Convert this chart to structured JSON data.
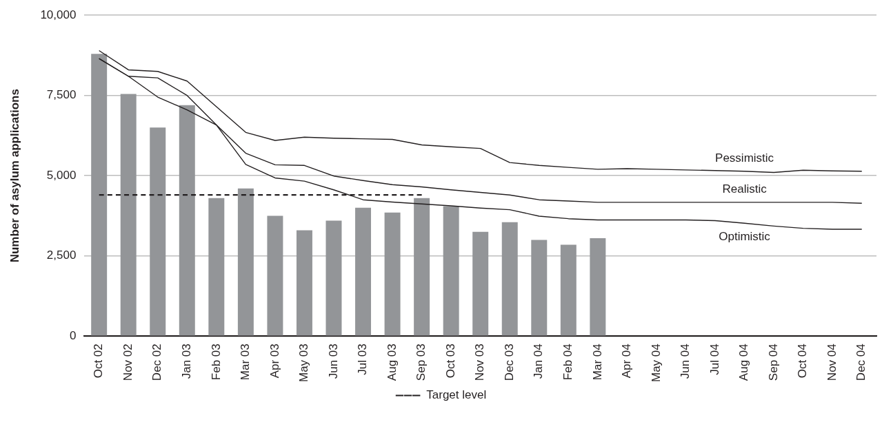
{
  "chart_data": {
    "type": "bar",
    "ylabel": "Number of asylum applications",
    "categories": [
      "Oct 02",
      "Nov 02",
      "Dec 02",
      "Jan 03",
      "Feb 03",
      "Mar 03",
      "Apr 03",
      "May 03",
      "Jun 03",
      "Jul 03",
      "Aug 03",
      "Sep 03",
      "Oct 03",
      "Nov 03",
      "Dec 03",
      "Jan 04",
      "Feb 04",
      "Mar 04",
      "Apr 04",
      "May 04",
      "Jun 04",
      "Jul 04",
      "Aug 04",
      "Sep 04",
      "Oct 04",
      "Nov 04",
      "Dec 04"
    ],
    "series": [
      {
        "color": "#939598",
        "values": [
          8800,
          7550,
          6500,
          7200,
          4300,
          4600,
          3750,
          3300,
          3600,
          4000,
          3850,
          4300,
          4050,
          3250,
          3550,
          3000,
          2850,
          3050,
          null,
          null,
          null,
          null,
          null,
          null,
          null,
          null,
          null
        ]
      },
      {
        "type": "line",
        "name": "Pessimistic",
        "color": "#231f20",
        "values": [
          8900,
          8300,
          8250,
          7950,
          7150,
          6350,
          6100,
          6200,
          6170,
          6150,
          6130,
          5960,
          5900,
          5850,
          5410,
          5320,
          5260,
          5200,
          5220,
          5200,
          5180,
          5160,
          5140,
          5100,
          5170,
          5150,
          5140
        ]
      },
      {
        "type": "line",
        "name": "Realistic",
        "color": "#231f20",
        "values": [
          8650,
          8100,
          8050,
          7500,
          6580,
          5700,
          5340,
          5320,
          4990,
          4850,
          4720,
          4650,
          4560,
          4480,
          4400,
          4250,
          4210,
          4170,
          4170,
          4170,
          4170,
          4170,
          4170,
          4170,
          4170,
          4170,
          4140
        ]
      },
      {
        "type": "line",
        "name": "Optimistic",
        "color": "#231f20",
        "values": [
          8650,
          8100,
          7450,
          7050,
          6580,
          5350,
          4930,
          4830,
          4560,
          4250,
          4180,
          4120,
          4060,
          3990,
          3940,
          3740,
          3660,
          3620,
          3620,
          3620,
          3620,
          3600,
          3520,
          3430,
          3360,
          3330,
          3330
        ]
      },
      {
        "type": "line",
        "name": "Target level",
        "color": "#231f20",
        "line_style": "dashed",
        "values": [
          4400,
          4400,
          4400,
          4400,
          4400,
          4400,
          4400,
          4400,
          4400,
          4400,
          4400,
          4400,
          null,
          null,
          null,
          null,
          null,
          null,
          null,
          null,
          null,
          null,
          null,
          null,
          null,
          null,
          null
        ]
      }
    ],
    "ylim": [
      0,
      10000
    ],
    "yticks": [
      {
        "value": 0,
        "label": "0"
      },
      {
        "value": 2500,
        "label": "2,500"
      },
      {
        "value": 5000,
        "label": "5,000"
      },
      {
        "value": 7500,
        "label": "7,500"
      },
      {
        "value": 10000,
        "label": "10,000"
      }
    ],
    "grid": "y",
    "legend": "bottom",
    "marker": "none"
  }
}
